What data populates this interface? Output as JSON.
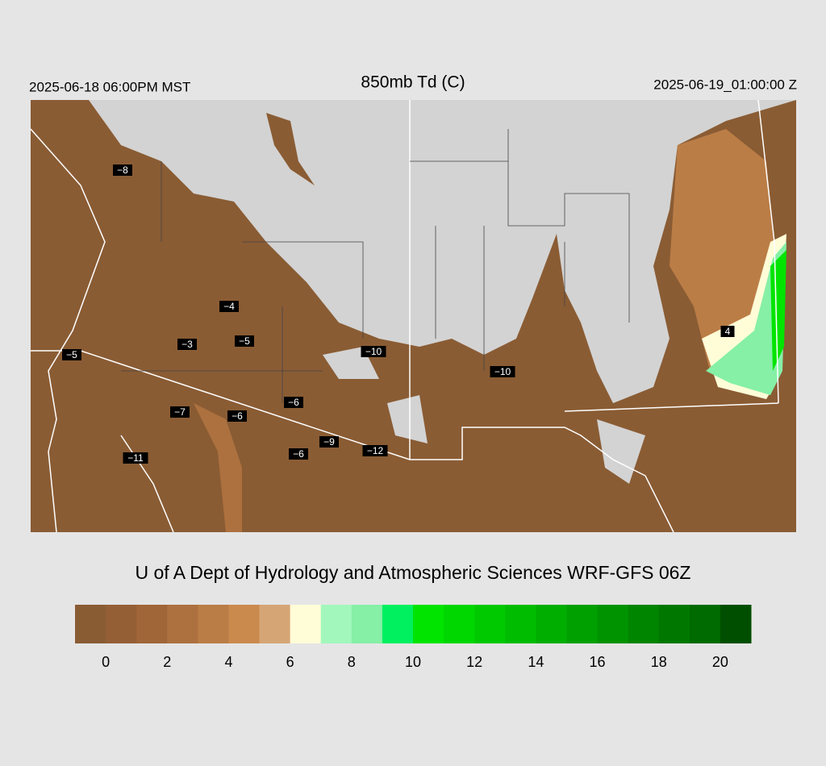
{
  "header": {
    "left": "2025-06-18 06:00PM MST",
    "title": "850mb Td (C)",
    "right": "2025-06-19_01:00:00 Z"
  },
  "station_labels": [
    "−8",
    "−4",
    "−3",
    "−5",
    "−5",
    "−10",
    "−10",
    "−7",
    "−6",
    "−6",
    "−6",
    "−9",
    "−12",
    "−11",
    "4"
  ],
  "credit": "U of A Dept of Hydrology and Atmospheric Sciences WRF-GFS 06Z",
  "colorbar": {
    "range": [
      -1,
      21
    ],
    "ticks": [
      0,
      2,
      4,
      6,
      8,
      10,
      12,
      14,
      16,
      18,
      20
    ],
    "colors": [
      "#8a5c34",
      "#955f36",
      "#a06638",
      "#ad713f",
      "#bb7d46",
      "#cb8a4d",
      "#d6a576",
      "#fffdd8",
      "#a2f7bc",
      "#85f0a6",
      "#00f060",
      "#00e400",
      "#00d700",
      "#00c900",
      "#00bc00",
      "#00ae00",
      "#00a000",
      "#009300",
      "#008500",
      "#007800",
      "#006b00",
      "#004f00"
    ]
  }
}
